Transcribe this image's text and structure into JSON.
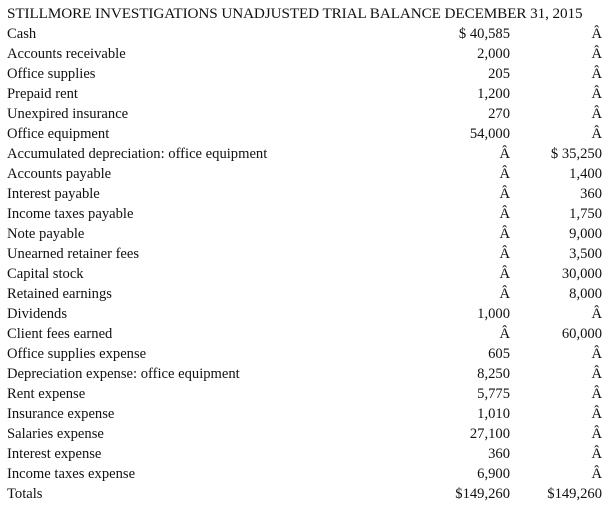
{
  "document": {
    "title": "STILLMORE INVESTIGATIONS UNADJUSTED TRIAL BALANCE DECEMBER 31, 2015",
    "rows": [
      {
        "account": "Cash",
        "debit": "$ 40,585",
        "credit": "Â"
      },
      {
        "account": "Accounts receivable",
        "debit": "2,000",
        "credit": "Â"
      },
      {
        "account": "Office supplies",
        "debit": "205",
        "credit": "Â"
      },
      {
        "account": "Prepaid rent",
        "debit": "1,200",
        "credit": "Â"
      },
      {
        "account": "Unexpired insurance",
        "debit": "270",
        "credit": "Â"
      },
      {
        "account": "Office equipment",
        "debit": "54,000",
        "credit": "Â"
      },
      {
        "account": "Accumulated depreciation: office equipment",
        "debit": "Â",
        "credit": "$ 35,250"
      },
      {
        "account": "Accounts payable",
        "debit": "Â",
        "credit": "1,400"
      },
      {
        "account": "Interest payable",
        "debit": "Â",
        "credit": "360"
      },
      {
        "account": "Income taxes payable",
        "debit": "Â",
        "credit": "1,750"
      },
      {
        "account": "Note payable",
        "debit": "Â",
        "credit": "9,000"
      },
      {
        "account": "Unearned retainer fees",
        "debit": "Â",
        "credit": "3,500"
      },
      {
        "account": "Capital stock",
        "debit": "Â",
        "credit": "30,000"
      },
      {
        "account": "Retained earnings",
        "debit": "Â",
        "credit": "8,000"
      },
      {
        "account": "Dividends",
        "debit": "1,000",
        "credit": "Â"
      },
      {
        "account": "Client fees earned",
        "debit": "Â",
        "credit": "60,000"
      },
      {
        "account": "Office supplies expense",
        "debit": "605",
        "credit": "Â"
      },
      {
        "account": "Depreciation expense: office equipment",
        "debit": "8,250",
        "credit": "Â"
      },
      {
        "account": "Rent expense",
        "debit": "5,775",
        "credit": "Â"
      },
      {
        "account": "Insurance expense",
        "debit": "1,010",
        "credit": "Â"
      },
      {
        "account": "Salaries expense",
        "debit": "27,100",
        "credit": "Â"
      },
      {
        "account": "Interest expense",
        "debit": "360",
        "credit": "Â"
      },
      {
        "account": "Income taxes expense",
        "debit": "6,900",
        "credit": "Â"
      },
      {
        "account": "Totals",
        "debit": "$149,260",
        "credit": "$149,260"
      }
    ]
  }
}
